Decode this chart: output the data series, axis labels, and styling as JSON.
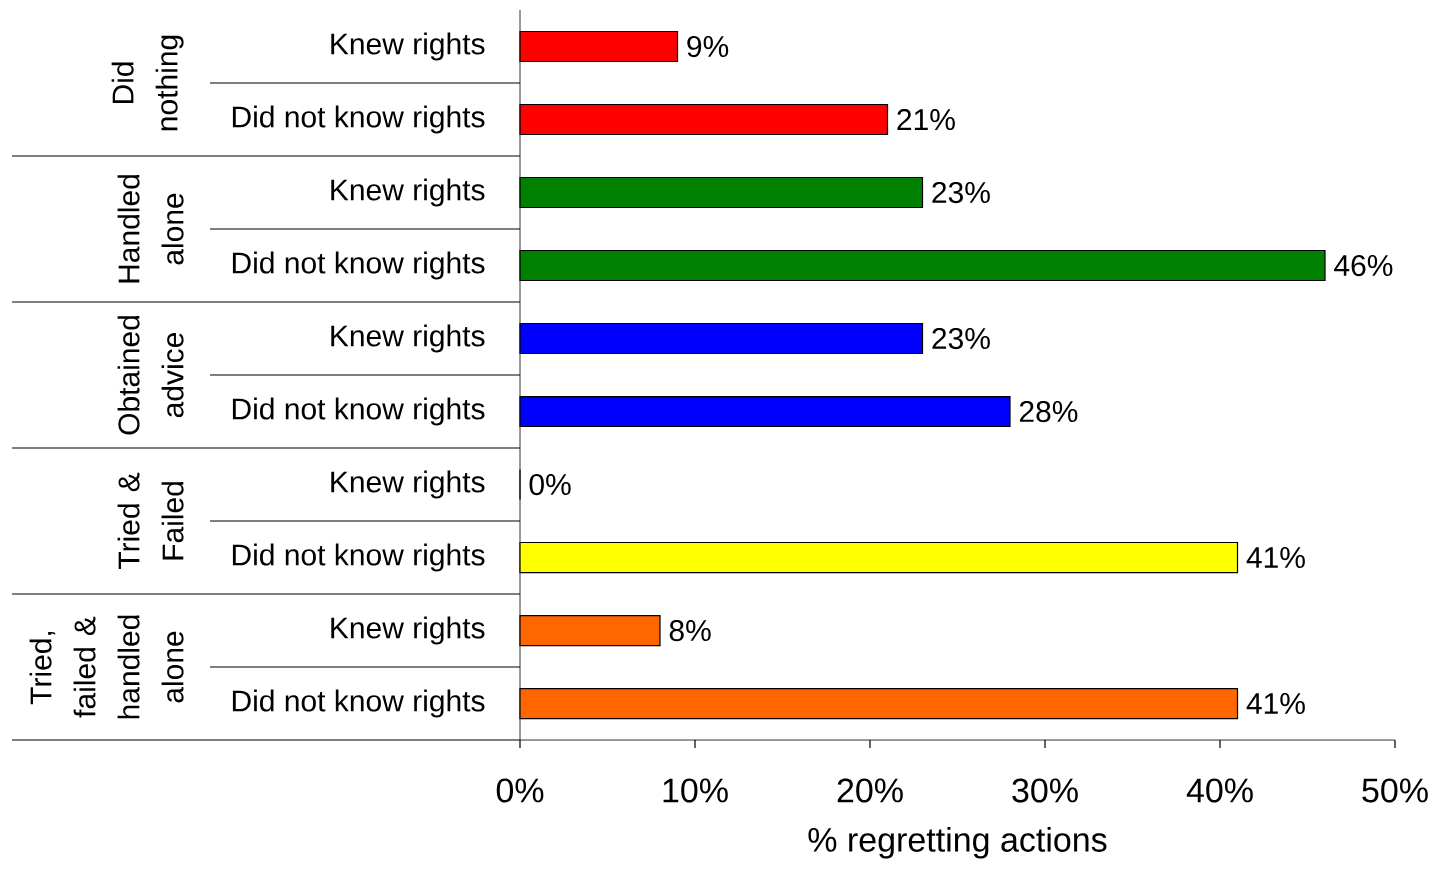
{
  "chart_data": {
    "type": "bar",
    "orientation": "horizontal",
    "xlabel": "% regretting actions",
    "categories": [
      "Knew rights",
      "Did not know rights",
      "Knew rights",
      "Did not know rights",
      "Knew rights",
      "Did not know rights",
      "Knew rights",
      "Did not know rights",
      "Knew rights",
      "Did not know rights"
    ],
    "values": [
      9,
      21,
      23,
      46,
      23,
      28,
      0,
      41,
      8,
      41
    ],
    "value_labels": [
      "9%",
      "21%",
      "23%",
      "46%",
      "23%",
      "28%",
      "0%",
      "41%",
      "8%",
      "41%"
    ],
    "colors": [
      "#ff0000",
      "#ff0000",
      "#008000",
      "#008000",
      "#0000ff",
      "#0000ff",
      "#ffff00",
      "#ffff00",
      "#ff6600",
      "#ff6600"
    ],
    "xlim": [
      0,
      50
    ],
    "xticks": [
      {
        "value": 0,
        "label": "0%"
      },
      {
        "value": 10,
        "label": "10%"
      },
      {
        "value": 20,
        "label": "20%"
      },
      {
        "value": 30,
        "label": "30%"
      },
      {
        "value": 40,
        "label": "40%"
      },
      {
        "value": 50,
        "label": "50%"
      }
    ],
    "annotations": [
      "Did nothing",
      "Handled alone",
      "Obtained advice",
      "Tried & Failed",
      "Tried, failed & handled alone"
    ]
  }
}
